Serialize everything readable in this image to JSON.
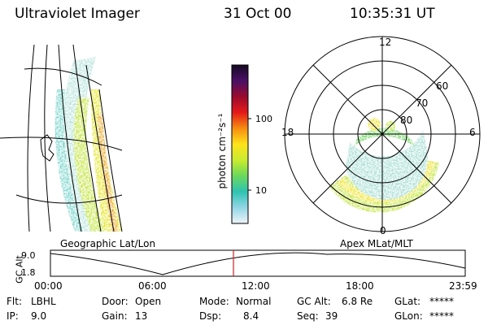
{
  "header": {
    "instrument": "Ultraviolet Imager",
    "date": "31 Oct 00",
    "time": "10:35:31 UT"
  },
  "colorbar": {
    "label": "photon cm⁻²s⁻¹",
    "ticks": [
      "100",
      "10"
    ]
  },
  "geo_panel": {
    "caption": "Geographic Lat/Lon"
  },
  "polar_panel": {
    "caption": "Apex MLat/MLT",
    "mlt_labels": {
      "top": "12",
      "left": "18",
      "right": "6",
      "bottom": "0"
    },
    "lat_labels": [
      "60",
      "70",
      "80"
    ]
  },
  "altitude_plot": {
    "ylabel": "GC Alt",
    "yticks": [
      "9.0",
      "1.8"
    ],
    "xticks": [
      "00:00",
      "06:00",
      "12:00",
      "18:00",
      "23:59"
    ],
    "current_time_hours": 10.59,
    "marker_color": "#e02020"
  },
  "status": {
    "flt_label": "Flt:",
    "flt_value": "LBHL",
    "ip_label": "IP:",
    "ip_value": "9.0",
    "door_label": "Door:",
    "door_value": "Open",
    "gain_label": "Gain:",
    "gain_value": "13",
    "mode_label": "Mode:",
    "mode_value": "Normal",
    "dsp_label": "Dsp:",
    "dsp_value": "8.4",
    "gcalt_label": "GC Alt:",
    "gcalt_value": "6.8 Re",
    "seq_label": "Seq:",
    "seq_value": "39",
    "glat_label": "GLat:",
    "glat_value": "*****",
    "glon_label": "GLon:",
    "glon_value": "*****"
  }
}
